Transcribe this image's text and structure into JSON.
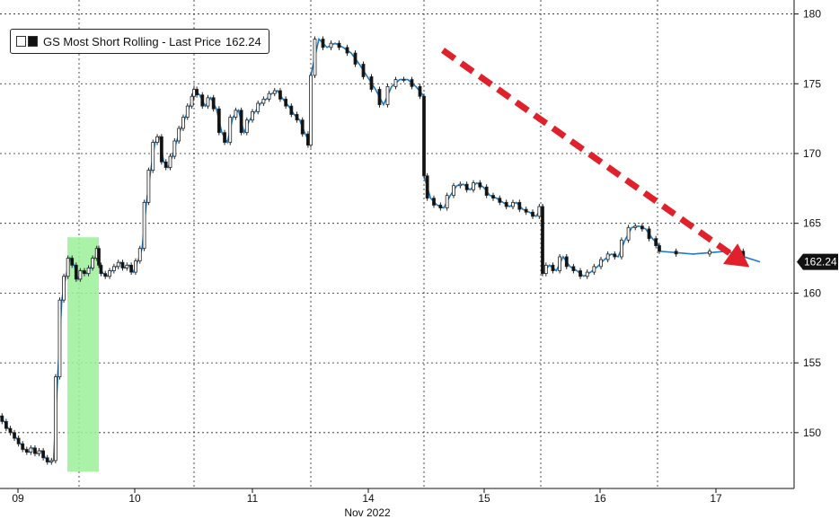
{
  "chart_data": {
    "type": "candlestick",
    "title": "",
    "legend": {
      "name": "GS Most Short Rolling",
      "label": "Last Price",
      "value": "162.24",
      "placement": "top-left"
    },
    "last_price_tag": "162.24",
    "xlabel": "Nov 2022",
    "ylabel": "",
    "ylim": [
      146,
      181
    ],
    "y_ticks": [
      "150",
      "155",
      "160",
      "165",
      "170",
      "175",
      "180"
    ],
    "x_ticks": [
      "09",
      "10",
      "11",
      "14",
      "15",
      "16",
      "17"
    ],
    "grid": true,
    "colors": {
      "up_candle": "#ffffff",
      "down_candle": "#111111",
      "line": "#1f7ac2",
      "highlight": "#9cf09a",
      "trend_arrow": "#e0202a",
      "last_price_tag": "#111111"
    },
    "annotations": [
      {
        "type": "highlight-band",
        "x": [
          "09 late",
          "10 open"
        ],
        "y": [
          147.2,
          164
        ]
      },
      {
        "type": "trend-arrow",
        "from": [
          "15 open",
          177.5
        ],
        "to": [
          "17 close",
          161.8
        ]
      }
    ],
    "series": [
      {
        "name": "GS Most Short Rolling",
        "points": [
          [
            "09 00:00",
            151.2
          ],
          [
            "09 00:30",
            150.8
          ],
          [
            "09 01:00",
            150.3
          ],
          [
            "09 01:30",
            150.0
          ],
          [
            "09 02:00",
            149.6
          ],
          [
            "09 02:30",
            149.2
          ],
          [
            "09 03:00",
            148.8
          ],
          [
            "09 03:30",
            148.6
          ],
          [
            "09 04:00",
            148.9
          ],
          [
            "09 04:30",
            148.5
          ],
          [
            "09 05:00",
            148.7
          ],
          [
            "09 05:30",
            148.2
          ],
          [
            "09 06:00",
            147.9
          ],
          [
            "09 06:30",
            148.0
          ],
          [
            "09 07:00",
            154.0
          ],
          [
            "09 07:30",
            159.5
          ],
          [
            "09 08:00",
            161.2
          ],
          [
            "09 08:30",
            162.5
          ],
          [
            "09 09:00",
            162.0
          ],
          [
            "09 09:30",
            161.0
          ],
          [
            "09 10:00",
            161.6
          ],
          [
            "09 10:30",
            161.4
          ],
          [
            "09 11:00",
            161.8
          ],
          [
            "09 11:30",
            162.5
          ],
          [
            "09 12:00",
            163.2
          ],
          [
            "10 00:00",
            162.0
          ],
          [
            "10 01:00",
            161.4
          ],
          [
            "10 02:00",
            161.2
          ],
          [
            "10 03:00",
            161.6
          ],
          [
            "10 04:00",
            161.9
          ],
          [
            "10 05:00",
            162.2
          ],
          [
            "10 06:00",
            161.8
          ],
          [
            "10 07:00",
            162.0
          ],
          [
            "10 08:00",
            161.5
          ],
          [
            "10 09:00",
            162.3
          ],
          [
            "10 10:00",
            163.2
          ],
          [
            "10 11:00",
            166.5
          ],
          [
            "10 12:00",
            168.8
          ],
          [
            "10 13:00",
            170.8
          ],
          [
            "10 14:00",
            171.2
          ],
          [
            "10 15:00",
            169.4
          ],
          [
            "10 16:00",
            169.0
          ],
          [
            "10 17:00",
            169.8
          ],
          [
            "10 18:00",
            170.9
          ],
          [
            "10 19:00",
            171.8
          ],
          [
            "10 20:00",
            172.6
          ],
          [
            "10 21:00",
            173.4
          ],
          [
            "10 22:00",
            174.1
          ],
          [
            "11 00:00",
            174.6
          ],
          [
            "11 01:00",
            174.2
          ],
          [
            "11 02:00",
            173.4
          ],
          [
            "11 03:00",
            174.0
          ],
          [
            "11 04:00",
            173.2
          ],
          [
            "11 05:00",
            171.5
          ],
          [
            "11 06:00",
            170.8
          ],
          [
            "11 07:00",
            172.6
          ],
          [
            "11 08:00",
            173.1
          ],
          [
            "11 09:00",
            171.5
          ],
          [
            "11 10:00",
            172.4
          ],
          [
            "11 11:00",
            173.0
          ],
          [
            "11 12:00",
            173.6
          ],
          [
            "11 13:00",
            173.9
          ],
          [
            "11 14:00",
            174.3
          ],
          [
            "11 15:00",
            174.5
          ],
          [
            "11 16:00",
            173.9
          ],
          [
            "11 17:00",
            173.4
          ],
          [
            "11 18:00",
            172.8
          ],
          [
            "11 19:00",
            172.4
          ],
          [
            "11 20:00",
            171.4
          ],
          [
            "11 21:00",
            170.6
          ],
          [
            "14 00:00",
            175.6
          ],
          [
            "14 01:00",
            178.2
          ],
          [
            "14 02:00",
            177.6
          ],
          [
            "14 03:00",
            177.9
          ],
          [
            "14 04:00",
            177.6
          ],
          [
            "14 05:00",
            177.2
          ],
          [
            "14 06:00",
            176.4
          ],
          [
            "14 07:00",
            175.5
          ],
          [
            "14 08:00",
            174.6
          ],
          [
            "14 09:00",
            173.5
          ],
          [
            "14 10:00",
            174.8
          ],
          [
            "14 11:00",
            175.3
          ],
          [
            "14 12:00",
            175.3
          ],
          [
            "14 13:00",
            174.8
          ],
          [
            "14 14:00",
            174.1
          ],
          [
            "15 00:00",
            168.4
          ],
          [
            "15 01:00",
            166.8
          ],
          [
            "15 02:00",
            166.3
          ],
          [
            "15 03:00",
            166.1
          ],
          [
            "15 04:00",
            167.0
          ],
          [
            "15 05:00",
            167.7
          ],
          [
            "15 06:00",
            167.8
          ],
          [
            "15 07:00",
            167.4
          ],
          [
            "15 08:00",
            167.9
          ],
          [
            "15 09:00",
            167.6
          ],
          [
            "15 10:00",
            167.0
          ],
          [
            "15 11:00",
            166.8
          ],
          [
            "15 12:00",
            166.5
          ],
          [
            "15 13:00",
            166.2
          ],
          [
            "15 14:00",
            166.5
          ],
          [
            "15 15:00",
            166.0
          ],
          [
            "15 16:00",
            165.8
          ],
          [
            "15 17:00",
            165.5
          ],
          [
            "15 18:00",
            166.2
          ],
          [
            "16 00:00",
            161.4
          ],
          [
            "16 01:00",
            162.0
          ],
          [
            "16 02:00",
            161.6
          ],
          [
            "16 03:00",
            162.6
          ],
          [
            "16 04:00",
            161.9
          ],
          [
            "16 05:00",
            161.6
          ],
          [
            "16 06:00",
            161.2
          ],
          [
            "16 07:00",
            161.5
          ],
          [
            "16 08:00",
            161.9
          ],
          [
            "16 09:00",
            162.4
          ],
          [
            "16 10:00",
            162.8
          ],
          [
            "16 11:00",
            162.6
          ],
          [
            "16 12:00",
            163.8
          ],
          [
            "16 13:00",
            164.7
          ],
          [
            "16 14:00",
            164.8
          ],
          [
            "16 15:00",
            164.6
          ],
          [
            "16 16:00",
            163.9
          ],
          [
            "16 17:00",
            163.4
          ],
          [
            "17 00:00",
            163.0
          ],
          [
            "17 01:00",
            162.8
          ],
          [
            "17 02:00",
            163.0
          ],
          [
            "17 03:00",
            162.24
          ]
        ]
      }
    ]
  }
}
